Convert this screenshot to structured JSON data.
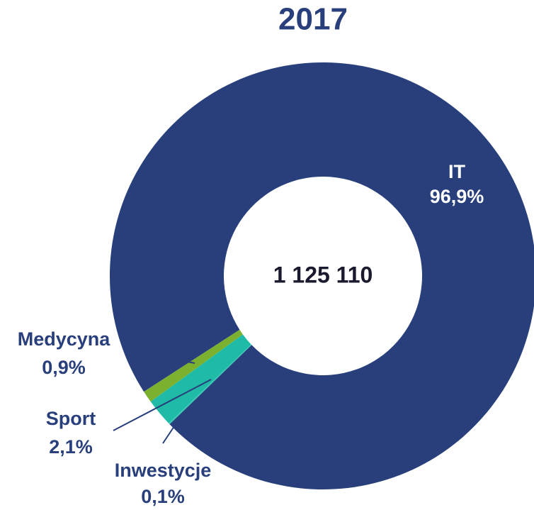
{
  "chart_data": {
    "type": "donut",
    "title": "2017",
    "center_label": "1 125 110",
    "categories": [
      "IT",
      "Medycyna",
      "Sport",
      "Inwestycje"
    ],
    "values": [
      96.9,
      0.9,
      2.1,
      0.1
    ],
    "value_labels": [
      "96,9%",
      "0,9%",
      "2,1%",
      "0,1%"
    ],
    "colors": [
      "#283f7c",
      "#7bb12f",
      "#1fbba6",
      "#35c7b4"
    ]
  }
}
